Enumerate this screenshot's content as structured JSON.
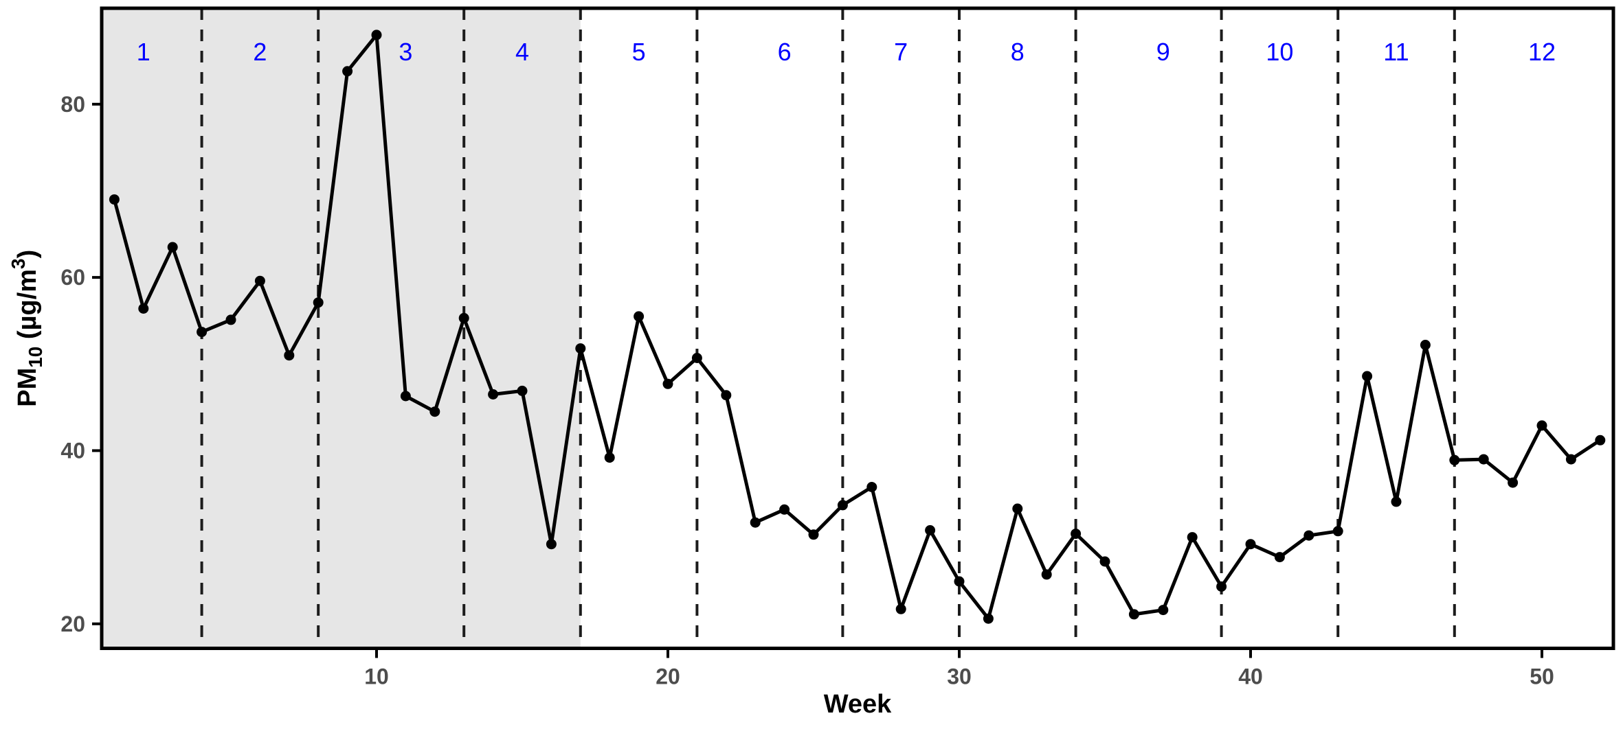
{
  "chart_data": {
    "type": "line",
    "title": "",
    "xlabel": "Week",
    "ylabel": "PM10 (µg/m³)",
    "ylabel_parts": {
      "base": "PM",
      "sub": "10",
      "mid": " (µg/m",
      "sup": "3",
      "end": ")"
    },
    "x": [
      1,
      2,
      3,
      4,
      5,
      6,
      7,
      8,
      9,
      10,
      11,
      12,
      13,
      14,
      15,
      16,
      17,
      18,
      19,
      20,
      21,
      22,
      23,
      24,
      25,
      26,
      27,
      28,
      29,
      30,
      31,
      32,
      33,
      34,
      35,
      36,
      37,
      38,
      39,
      40,
      41,
      42,
      43,
      44,
      45,
      46,
      47,
      48,
      49,
      50,
      51,
      52
    ],
    "values": [
      69.0,
      56.4,
      63.5,
      53.7,
      55.1,
      59.6,
      51.0,
      57.1,
      83.8,
      88.0,
      46.3,
      44.5,
      55.3,
      46.5,
      46.9,
      29.2,
      51.8,
      39.2,
      55.5,
      47.7,
      50.7,
      46.4,
      31.7,
      33.2,
      30.3,
      33.7,
      35.8,
      21.7,
      30.8,
      24.9,
      20.6,
      33.3,
      25.7,
      30.4,
      27.2,
      21.1,
      21.6,
      30.0,
      24.3,
      29.2,
      27.7,
      30.2,
      30.7,
      48.6,
      34.1,
      52.2,
      38.9,
      39.0,
      36.3,
      42.9,
      39.0,
      41.2
    ],
    "x_ticks": [
      10,
      20,
      30,
      40,
      50
    ],
    "y_ticks": [
      20,
      40,
      60,
      80
    ],
    "xlim": [
      0.566,
      52.453
    ],
    "ylim": [
      17.17,
      91.08
    ],
    "grid": false,
    "legend": null,
    "month_labels": [
      "1",
      "2",
      "3",
      "4",
      "5",
      "6",
      "7",
      "8",
      "9",
      "10",
      "11",
      "12"
    ],
    "month_label_weeks": [
      2,
      6,
      11,
      15,
      19,
      24,
      28,
      32,
      37,
      41,
      45,
      50
    ],
    "month_separator_weeks": [
      4,
      8,
      13,
      17,
      21,
      26,
      30,
      34,
      39,
      43,
      47
    ],
    "shaded_region": {
      "start_week": "panel-left",
      "end_week": 17
    },
    "colors": {
      "line": "#000000",
      "point": "#000000",
      "shade": "#e6e6e6",
      "separator": "#1c1c1c",
      "month_label": "#0000ff",
      "tick_label": "#4d4d4d",
      "axis": "#000000",
      "background": "#ffffff"
    }
  }
}
